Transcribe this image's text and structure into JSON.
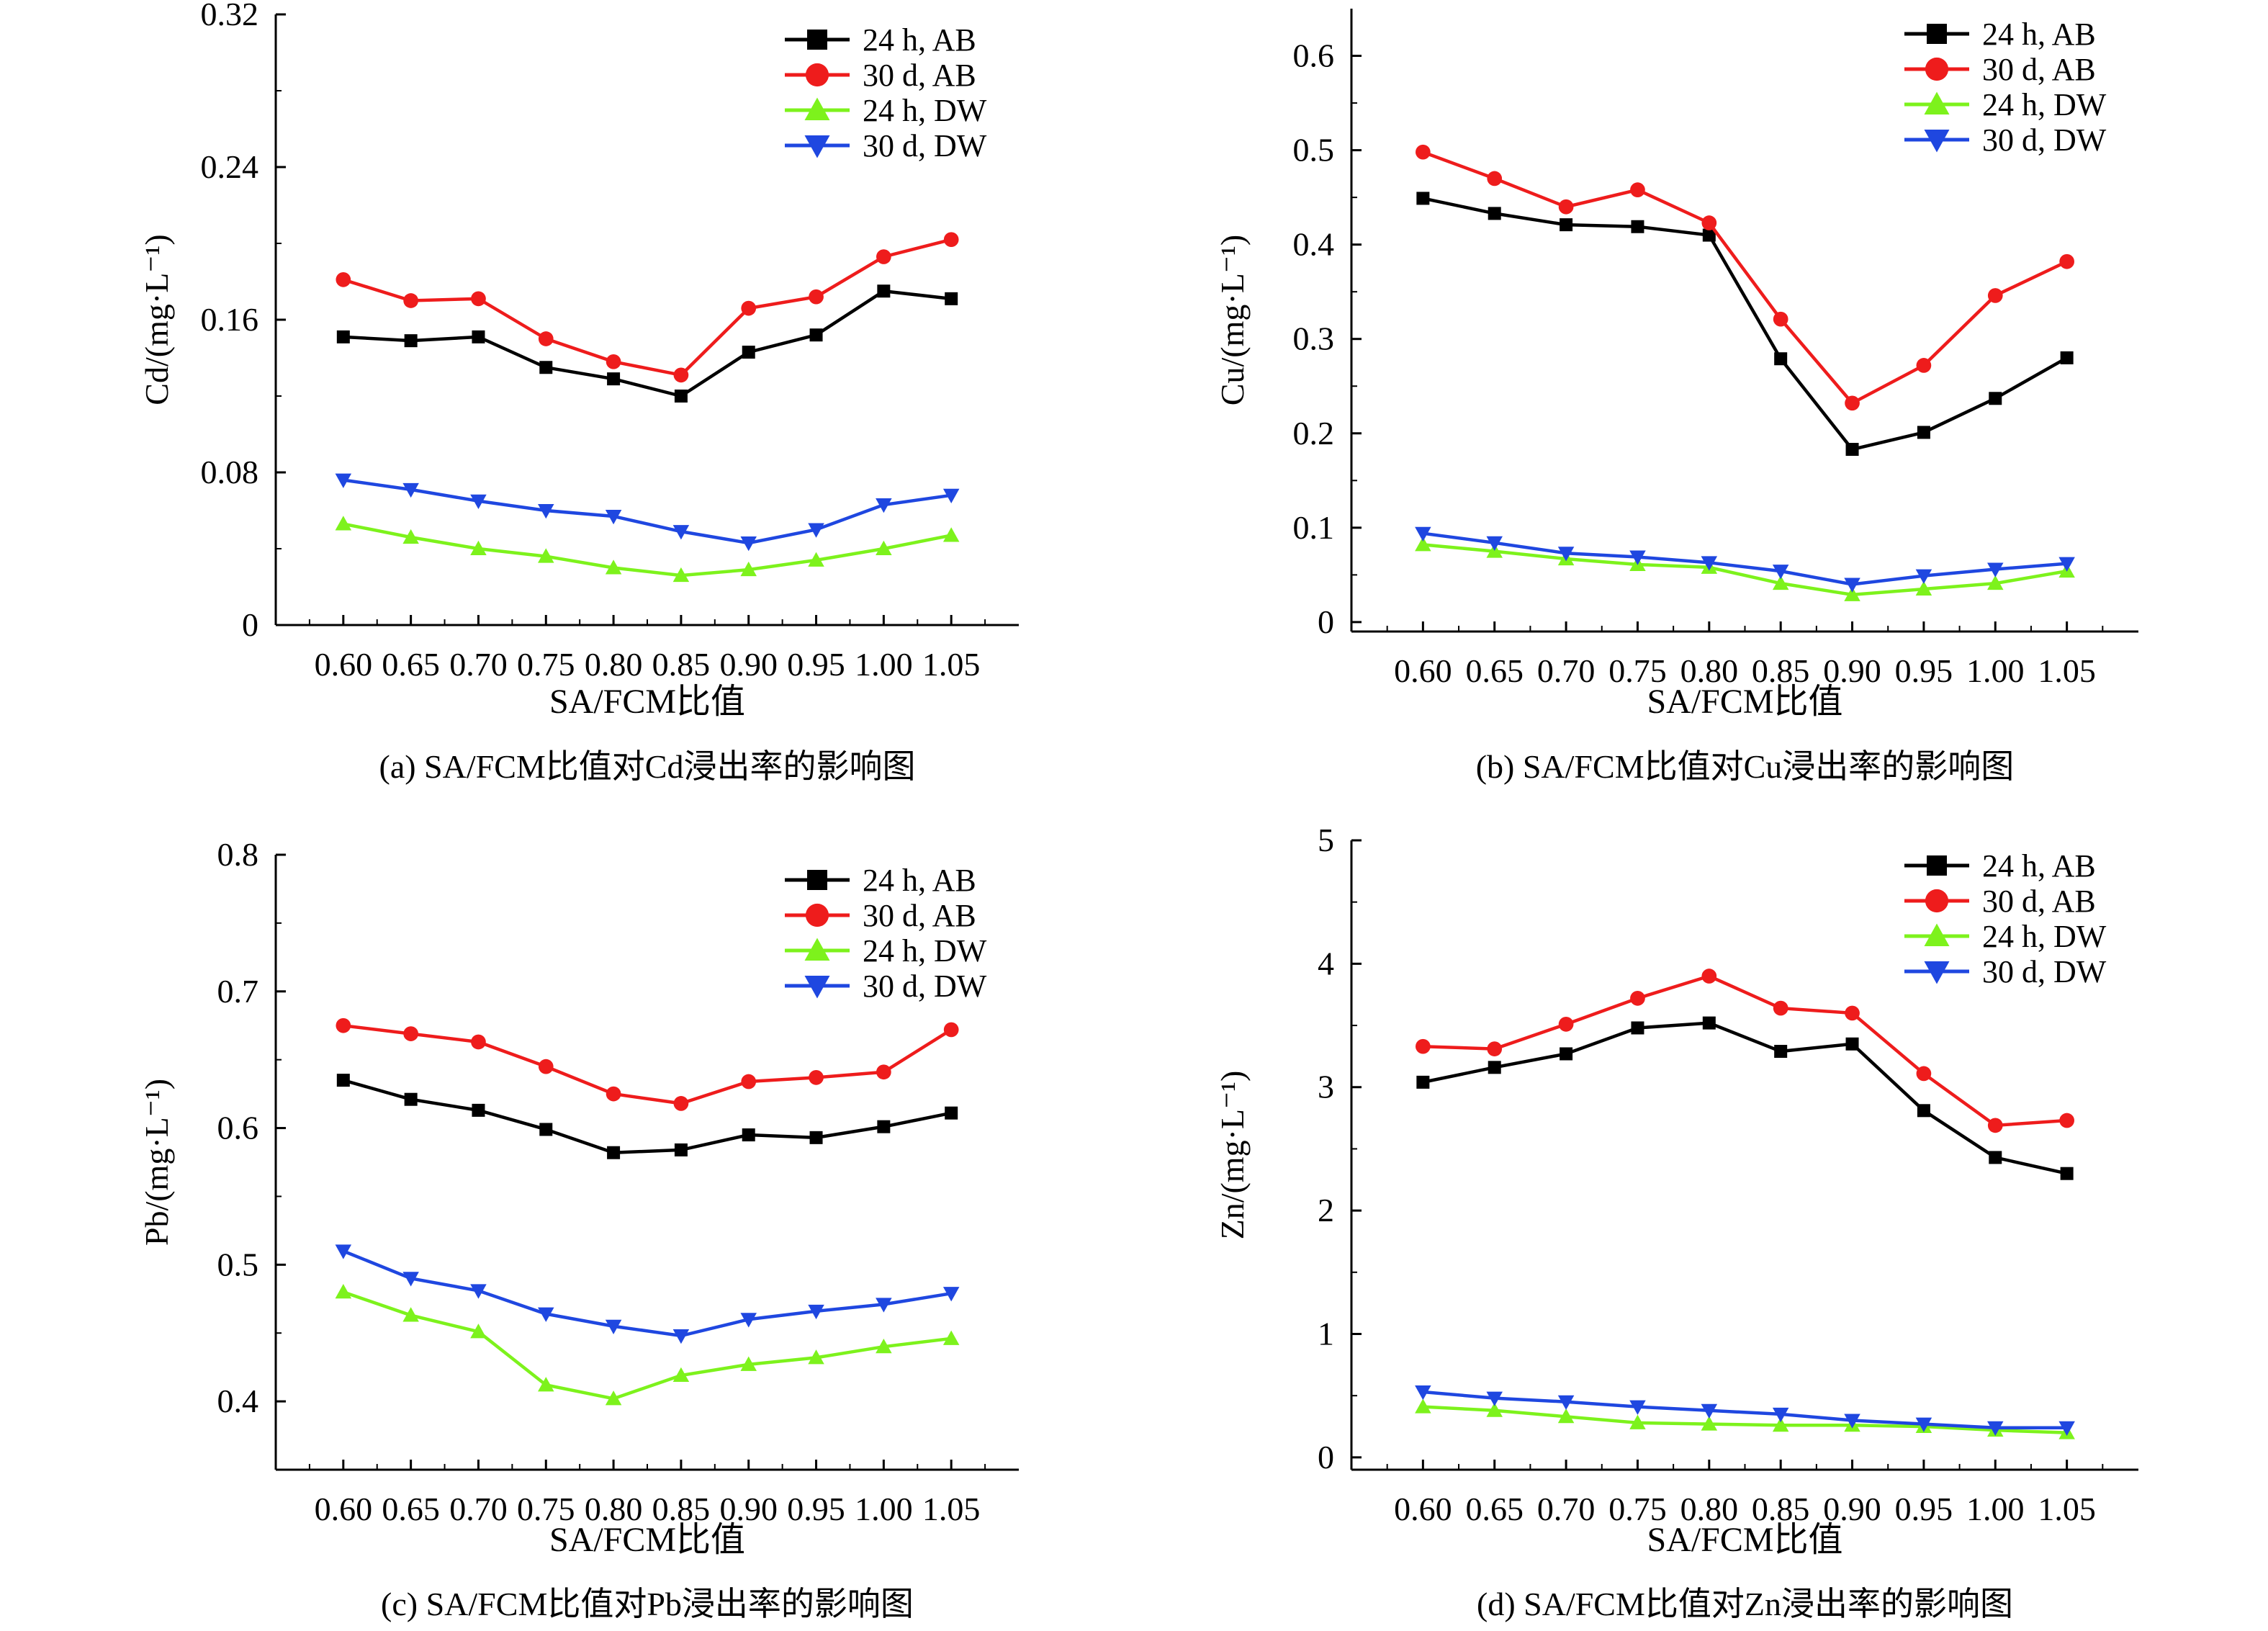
{
  "legend_labels": [
    "24 h, AB",
    "30 d, AB",
    "24 h, DW",
    "30 d, DW"
  ],
  "series_colors": [
    "#000000",
    "#ee1c1c",
    "#7df21c",
    "#1f47e0"
  ],
  "series_markers": [
    "square",
    "circle",
    "triangle-up",
    "triangle-down"
  ],
  "chart_data": [
    {
      "type": "line",
      "panel_caption": "(a) SA/FCM比值对Cd浸出率的影响图",
      "xlabel": "SA/FCM比值",
      "ylabel": "Cd/(mg·L⁻¹)",
      "x_tick_labels": [
        "0.60",
        "0.65",
        "0.70",
        "0.75",
        "0.80",
        "0.85",
        "0.90",
        "0.95",
        "1.00",
        "1.05"
      ],
      "y_tick_labels": [
        "0",
        "0.08",
        "0.16",
        "0.24",
        "0.32"
      ],
      "ylim": [
        0,
        0.32
      ],
      "legend_position": "top-right",
      "grid": false,
      "x": [
        0.6,
        0.65,
        0.7,
        0.75,
        0.8,
        0.85,
        0.9,
        0.95,
        1.0,
        1.05
      ],
      "series": [
        {
          "name": "24 h, AB",
          "values": [
            0.151,
            0.149,
            0.151,
            0.135,
            0.129,
            0.12,
            0.143,
            0.152,
            0.175,
            0.171
          ]
        },
        {
          "name": "30 d, AB",
          "values": [
            0.181,
            0.17,
            0.171,
            0.15,
            0.138,
            0.131,
            0.166,
            0.172,
            0.193,
            0.202
          ]
        },
        {
          "name": "24 h, DW",
          "values": [
            0.053,
            0.046,
            0.04,
            0.036,
            0.03,
            0.026,
            0.029,
            0.034,
            0.04,
            0.047
          ]
        },
        {
          "name": "30 d, DW",
          "values": [
            0.076,
            0.071,
            0.065,
            0.06,
            0.057,
            0.049,
            0.043,
            0.05,
            0.063,
            0.068
          ]
        }
      ]
    },
    {
      "type": "line",
      "panel_caption": "(b) SA/FCM比值对Cu浸出率的影响图",
      "xlabel": "SA/FCM比值",
      "ylabel": "Cu/(mg·L⁻¹)",
      "x_tick_labels": [
        "0.60",
        "0.65",
        "0.70",
        "0.75",
        "0.80",
        "0.85",
        "0.90",
        "0.95",
        "1.00",
        "1.05"
      ],
      "y_tick_labels": [
        "0",
        "0.1",
        "0.2",
        "0.3",
        "0.4",
        "0.5",
        "0.6"
      ],
      "ylim": [
        -0.01,
        0.65
      ],
      "legend_position": "top-right",
      "grid": false,
      "x": [
        0.6,
        0.65,
        0.7,
        0.75,
        0.8,
        0.85,
        0.9,
        0.95,
        1.0,
        1.05
      ],
      "series": [
        {
          "name": "24 h, AB",
          "values": [
            0.449,
            0.433,
            0.421,
            0.419,
            0.41,
            0.279,
            0.183,
            0.201,
            0.237,
            0.28
          ]
        },
        {
          "name": "30 d, AB",
          "values": [
            0.498,
            0.47,
            0.44,
            0.458,
            0.423,
            0.321,
            0.232,
            0.272,
            0.346,
            0.382
          ]
        },
        {
          "name": "24 h, DW",
          "values": [
            0.082,
            0.075,
            0.067,
            0.061,
            0.058,
            0.041,
            0.029,
            0.035,
            0.041,
            0.054
          ]
        },
        {
          "name": "30 d, DW",
          "values": [
            0.094,
            0.084,
            0.073,
            0.069,
            0.063,
            0.054,
            0.04,
            0.049,
            0.056,
            0.062
          ]
        }
      ]
    },
    {
      "type": "line",
      "panel_caption": "(c) SA/FCM比值对Pb浸出率的影响图",
      "xlabel": "SA/FCM比值",
      "ylabel": "Pb/(mg·L⁻¹)",
      "x_tick_labels": [
        "0.60",
        "0.65",
        "0.70",
        "0.75",
        "0.80",
        "0.85",
        "0.90",
        "0.95",
        "1.00",
        "1.05"
      ],
      "y_tick_labels": [
        "0.4",
        "0.5",
        "0.6",
        "0.7",
        "0.8"
      ],
      "ylim": [
        0.35,
        0.8
      ],
      "legend_position": "top-right",
      "grid": false,
      "x": [
        0.6,
        0.65,
        0.7,
        0.75,
        0.8,
        0.85,
        0.9,
        0.95,
        1.0,
        1.05
      ],
      "series": [
        {
          "name": "24 h, AB",
          "values": [
            0.635,
            0.621,
            0.613,
            0.599,
            0.582,
            0.584,
            0.595,
            0.593,
            0.601,
            0.611
          ]
        },
        {
          "name": "30 d, AB",
          "values": [
            0.675,
            0.669,
            0.663,
            0.645,
            0.625,
            0.618,
            0.634,
            0.637,
            0.641,
            0.672
          ]
        },
        {
          "name": "24 h, DW",
          "values": [
            0.48,
            0.463,
            0.451,
            0.412,
            0.402,
            0.419,
            0.427,
            0.432,
            0.44,
            0.446
          ]
        },
        {
          "name": "30 d, DW",
          "values": [
            0.51,
            0.49,
            0.481,
            0.464,
            0.455,
            0.448,
            0.46,
            0.466,
            0.471,
            0.479
          ]
        }
      ]
    },
    {
      "type": "line",
      "panel_caption": "(d) SA/FCM比值对Zn浸出率的影响图",
      "xlabel": "SA/FCM比值",
      "ylabel": "Zn/(mg·L⁻¹)",
      "x_tick_labels": [
        "0.60",
        "0.65",
        "0.70",
        "0.75",
        "0.80",
        "0.85",
        "0.90",
        "0.95",
        "1.00",
        "1.05"
      ],
      "y_tick_labels": [
        "0",
        "1",
        "2",
        "3",
        "4",
        "5"
      ],
      "ylim": [
        -0.1,
        5
      ],
      "legend_position": "top-right",
      "grid": false,
      "x": [
        0.6,
        0.65,
        0.7,
        0.75,
        0.8,
        0.85,
        0.9,
        0.95,
        1.0,
        1.05
      ],
      "series": [
        {
          "name": "24 h, AB",
          "values": [
            3.04,
            3.16,
            3.27,
            3.48,
            3.52,
            3.29,
            3.35,
            2.81,
            2.43,
            2.3
          ]
        },
        {
          "name": "30 d, AB",
          "values": [
            3.33,
            3.31,
            3.51,
            3.72,
            3.9,
            3.64,
            3.6,
            3.11,
            2.69,
            2.73
          ]
        },
        {
          "name": "24 h, DW",
          "values": [
            0.41,
            0.38,
            0.33,
            0.28,
            0.27,
            0.26,
            0.26,
            0.25,
            0.22,
            0.2
          ]
        },
        {
          "name": "30 d, DW",
          "values": [
            0.53,
            0.48,
            0.45,
            0.41,
            0.38,
            0.35,
            0.3,
            0.27,
            0.24,
            0.24
          ]
        }
      ]
    }
  ]
}
